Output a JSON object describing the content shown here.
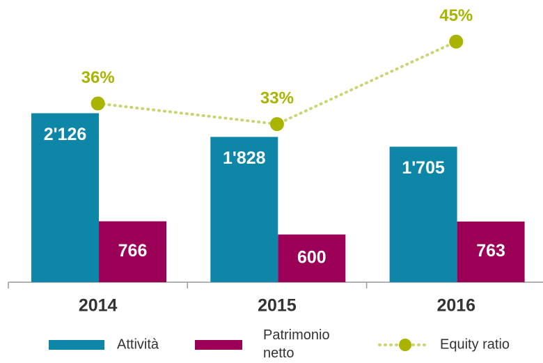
{
  "chart_data": {
    "type": "bar",
    "categories": [
      "2014",
      "2015",
      "2016"
    ],
    "ylim": [
      0,
      3200
    ],
    "y2lim": [
      10,
      47
    ],
    "series": [
      {
        "name": "Attività",
        "color": "#0e86a8",
        "values": [
          2126,
          1828,
          1705
        ],
        "value_labels": [
          "2'126",
          "1'828",
          "1'705"
        ]
      },
      {
        "name": "Patrimonio netto",
        "color": "#9b0056",
        "values": [
          766,
          600,
          763
        ]
      },
      {
        "name": "Equity ratio",
        "color": "#a8b400",
        "axis": "y2",
        "type": "line",
        "values": [
          36,
          33,
          45
        ],
        "value_labels": [
          "36%",
          "33%",
          "45%"
        ]
      }
    ]
  }
}
